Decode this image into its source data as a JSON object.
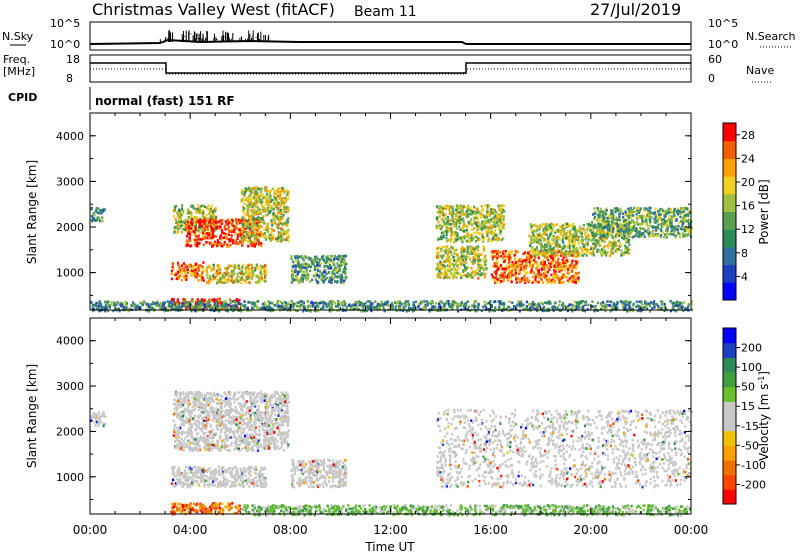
{
  "header": {
    "station": "Christmas Valley West (fitACF)",
    "beam": "Beam 11",
    "date": "27/Jul/2019"
  },
  "noise_panel": {
    "left_label": "N.Sky",
    "right_label": "N.Search",
    "left_ticks": [
      "10^5",
      "10^0"
    ],
    "right_ticks": [
      "10^5",
      "10^0"
    ]
  },
  "freq_panel": {
    "left_label_1": "Freq.",
    "left_label_2": "[MHz]",
    "right_label": "Nave",
    "left_ticks": [
      "18",
      "8"
    ],
    "right_ticks": [
      "60",
      "0"
    ]
  },
  "cpid": {
    "label": "CPID",
    "mode": "normal (fast) 151 RF"
  },
  "chart_data": [
    {
      "type": "heatmap",
      "title": "",
      "xlabel": "Time UT",
      "ylabel": "Slant Range [km]",
      "x_ticks": [
        "00:00",
        "04:00",
        "08:00",
        "12:00",
        "16:00",
        "20:00",
        "00:00"
      ],
      "xlim_hours": [
        0,
        24
      ],
      "y_ticks": [
        "1000",
        "2000",
        "3000",
        "4000"
      ],
      "ylim": [
        180,
        4500
      ],
      "colorbar": {
        "label": "Power [dB]",
        "ticks": [
          "4",
          "8",
          "12",
          "16",
          "20",
          "24",
          "28"
        ],
        "range": [
          0,
          30
        ],
        "colors": [
          "#0000ff",
          "#1e3fbf",
          "#2f6fa0",
          "#2e8b57",
          "#5aa050",
          "#a0c040",
          "#f0d020",
          "#f7a000",
          "#f06000",
          "#ff0000"
        ]
      },
      "regions": [
        {
          "t0": 0.0,
          "t1": 0.6,
          "r0": 2150,
          "r1": 2450,
          "level": 0.35
        },
        {
          "t0": 3.3,
          "t1": 5.0,
          "r0": 1900,
          "r1": 2500,
          "level": 0.55
        },
        {
          "t0": 3.8,
          "t1": 6.8,
          "r0": 1600,
          "r1": 2200,
          "level": 0.92
        },
        {
          "t0": 6.0,
          "t1": 7.9,
          "r0": 1700,
          "r1": 2900,
          "level": 0.6
        },
        {
          "t0": 3.2,
          "t1": 4.5,
          "r0": 850,
          "r1": 1250,
          "level": 0.78
        },
        {
          "t0": 4.6,
          "t1": 7.0,
          "r0": 800,
          "r1": 1200,
          "level": 0.62
        },
        {
          "t0": 8.0,
          "t1": 10.2,
          "r0": 800,
          "r1": 1400,
          "level": 0.4
        },
        {
          "t0": 13.8,
          "t1": 16.5,
          "r0": 1700,
          "r1": 2500,
          "level": 0.55
        },
        {
          "t0": 13.8,
          "t1": 15.8,
          "r0": 900,
          "r1": 1600,
          "level": 0.58
        },
        {
          "t0": 16.0,
          "t1": 19.5,
          "r0": 800,
          "r1": 1500,
          "level": 0.82
        },
        {
          "t0": 17.5,
          "t1": 21.5,
          "r0": 1400,
          "r1": 2100,
          "level": 0.55
        },
        {
          "t0": 20.0,
          "t1": 24.0,
          "r0": 1800,
          "r1": 2450,
          "level": 0.45
        },
        {
          "t0": 3.2,
          "t1": 6.0,
          "r0": 200,
          "r1": 450,
          "level": 0.95
        },
        {
          "t0": 0.0,
          "t1": 24.0,
          "r0": 180,
          "r1": 400,
          "level": 0.35
        }
      ]
    },
    {
      "type": "heatmap",
      "title": "",
      "xlabel": "Time UT",
      "ylabel": "Slant Range [km]",
      "x_ticks": [
        "00:00",
        "04:00",
        "08:00",
        "12:00",
        "16:00",
        "20:00",
        "00:00"
      ],
      "xlim_hours": [
        0,
        24
      ],
      "y_ticks": [
        "1000",
        "2000",
        "3000",
        "4000"
      ],
      "ylim": [
        180,
        4500
      ],
      "colorbar": {
        "label": "Velocity [m s^-1]",
        "ticks": [
          "200",
          "100",
          "50",
          "15",
          "-15",
          "-50",
          "-100",
          "-200"
        ],
        "range": [
          -250,
          250
        ],
        "colors": [
          "#ff0000",
          "#ff4400",
          "#f07000",
          "#f7a000",
          "#f0c000",
          "#c8c8c8",
          "#c8c8c8",
          "#6cc030",
          "#40a040",
          "#2e8b57",
          "#1e3fbf",
          "#0000ff"
        ]
      },
      "regions": [
        {
          "t0": 0.0,
          "t1": 0.6,
          "r0": 2150,
          "r1": 2450,
          "level": 0.5
        },
        {
          "t0": 3.3,
          "t1": 7.9,
          "r0": 1600,
          "r1": 2900,
          "level": 0.5
        },
        {
          "t0": 3.2,
          "t1": 7.0,
          "r0": 800,
          "r1": 1250,
          "level": 0.5
        },
        {
          "t0": 8.0,
          "t1": 10.2,
          "r0": 800,
          "r1": 1400,
          "level": 0.5
        },
        {
          "t0": 13.8,
          "t1": 24.0,
          "r0": 800,
          "r1": 2500,
          "level": 0.5
        },
        {
          "t0": 3.2,
          "t1": 6.0,
          "r0": 200,
          "r1": 450,
          "level": 0.1
        },
        {
          "t0": 6.0,
          "t1": 24.0,
          "r0": 180,
          "r1": 400,
          "level": 0.7
        }
      ]
    }
  ]
}
